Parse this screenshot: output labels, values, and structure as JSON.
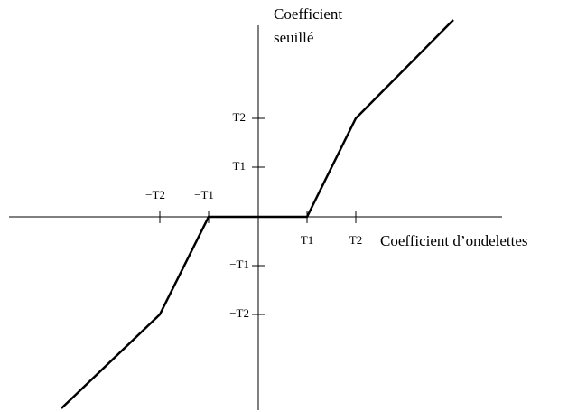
{
  "y_axis_label": [
    "Coefficient",
    "seuillé"
  ],
  "x_axis_label": "Coefficient d’ondelettes",
  "x_tick_labels": [
    "−T2",
    "−T1",
    "T1",
    "T2"
  ],
  "y_tick_labels": [
    "T2",
    "T1",
    "−T1",
    "−T2"
  ]
}
